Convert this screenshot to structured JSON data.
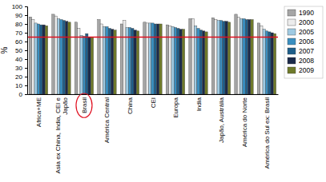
{
  "chart_data": {
    "type": "bar",
    "y_label": "%",
    "categories": [
      "Africa+ME",
      "Asia ex China, India, CEI e Japão",
      "Brasil",
      "América Central",
      "China",
      "CEI",
      "Europa",
      "India",
      "Japão, Austrália",
      "América do Norte",
      "América do Sul ex: Brasil"
    ],
    "series": [
      {
        "name": "1990",
        "color": "#a6a6a6",
        "values": [
          88,
          91,
          82,
          85,
          80,
          82,
          79,
          86,
          87,
          91,
          81
        ]
      },
      {
        "name": "2000",
        "color": "#ececec",
        "values": [
          85,
          89,
          75,
          80,
          84,
          81,
          78,
          86,
          85,
          88,
          78
        ]
      },
      {
        "name": "2005",
        "color": "#9fcae2",
        "values": [
          81,
          86,
          67,
          77,
          76,
          81,
          77,
          78,
          84,
          86,
          74
        ]
      },
      {
        "name": "2006",
        "color": "#3a8fc0",
        "values": [
          80,
          85,
          66,
          77,
          76,
          81,
          76,
          75,
          84,
          86,
          72
        ]
      },
      {
        "name": "2007",
        "color": "#1f5f8a",
        "values": [
          79,
          84,
          69,
          75,
          75,
          80,
          75,
          73,
          83,
          85,
          71
        ]
      },
      {
        "name": "2008",
        "color": "#1b2a4a",
        "values": [
          79,
          83,
          65,
          74,
          73,
          80,
          74,
          72,
          83,
          85,
          70
        ]
      },
      {
        "name": "2009",
        "color": "#6f7a2a",
        "values": [
          78,
          82,
          65,
          73,
          72,
          80,
          74,
          71,
          82,
          85,
          69
        ]
      }
    ],
    "reference_line": 65,
    "ylim": [
      0,
      100
    ],
    "yticks": [
      0,
      10,
      20,
      30,
      40,
      50,
      60,
      70,
      80,
      90,
      100
    ],
    "grid": false,
    "legend": "right"
  }
}
